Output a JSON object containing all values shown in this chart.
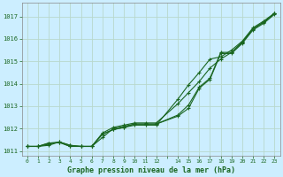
{
  "title": "Graphe pression niveau de la mer (hPa)",
  "background_color": "#cceeff",
  "grid_color": "#b8d8cc",
  "line_color": "#1a6620",
  "xlim": [
    -0.5,
    23.5
  ],
  "ylim": [
    1010.8,
    1017.6
  ],
  "yticks": [
    1011,
    1012,
    1013,
    1014,
    1015,
    1016,
    1017
  ],
  "xtick_labels": [
    "0",
    "1",
    "2",
    "3",
    "4",
    "5",
    "6",
    "7",
    "8",
    "9",
    "10",
    "11",
    "12",
    "",
    "14",
    "15",
    "16",
    "17",
    "18",
    "19",
    "20",
    "21",
    "22",
    "23"
  ],
  "xtick_positions": [
    0,
    1,
    2,
    3,
    4,
    5,
    6,
    7,
    8,
    9,
    10,
    11,
    12,
    13,
    14,
    15,
    16,
    17,
    18,
    19,
    20,
    21,
    22,
    23
  ],
  "series": [
    {
      "x": [
        0,
        1,
        2,
        3,
        4,
        5,
        6,
        7,
        8,
        9,
        10,
        11,
        12,
        14,
        15,
        16,
        17,
        18,
        19,
        20,
        21,
        22,
        23
      ],
      "y": [
        1011.2,
        1011.2,
        1011.25,
        1011.4,
        1011.25,
        1011.2,
        1011.2,
        1011.6,
        1012.0,
        1012.1,
        1012.2,
        1012.2,
        1012.2,
        1012.55,
        1012.9,
        1013.8,
        1014.2,
        1015.35,
        1015.35,
        1015.8,
        1016.4,
        1016.7,
        1017.1
      ]
    },
    {
      "x": [
        0,
        1,
        2,
        3,
        4,
        5,
        6,
        7,
        8,
        9,
        10,
        11,
        12,
        14,
        15,
        16,
        17,
        18,
        19,
        20,
        21,
        22,
        23
      ],
      "y": [
        1011.2,
        1011.2,
        1011.3,
        1011.4,
        1011.25,
        1011.2,
        1011.2,
        1011.8,
        1012.05,
        1012.15,
        1012.25,
        1012.25,
        1012.25,
        1013.1,
        1013.6,
        1014.1,
        1014.7,
        1015.1,
        1015.4,
        1015.85,
        1016.45,
        1016.75,
        1017.15
      ]
    },
    {
      "x": [
        0,
        1,
        2,
        3,
        4,
        5,
        6,
        7,
        8,
        9,
        10,
        11,
        12,
        14,
        15,
        16,
        17,
        18,
        19,
        20,
        21,
        22,
        23
      ],
      "y": [
        1011.2,
        1011.2,
        1011.35,
        1011.38,
        1011.2,
        1011.2,
        1011.2,
        1011.75,
        1011.95,
        1012.05,
        1012.15,
        1012.15,
        1012.15,
        1013.3,
        1013.95,
        1014.5,
        1015.1,
        1015.2,
        1015.5,
        1015.9,
        1016.5,
        1016.8,
        1017.15
      ]
    },
    {
      "x": [
        0,
        1,
        2,
        3,
        4,
        5,
        6,
        7,
        8,
        9,
        10,
        11,
        12,
        14,
        15,
        16,
        17,
        18,
        19,
        20,
        21,
        22,
        23
      ],
      "y": [
        1011.2,
        1011.2,
        1011.35,
        1011.38,
        1011.2,
        1011.2,
        1011.2,
        1011.75,
        1011.95,
        1012.05,
        1012.2,
        1012.2,
        1012.2,
        1012.6,
        1013.05,
        1013.85,
        1014.25,
        1015.4,
        1015.4,
        1015.85,
        1016.45,
        1016.75,
        1017.15
      ]
    }
  ]
}
